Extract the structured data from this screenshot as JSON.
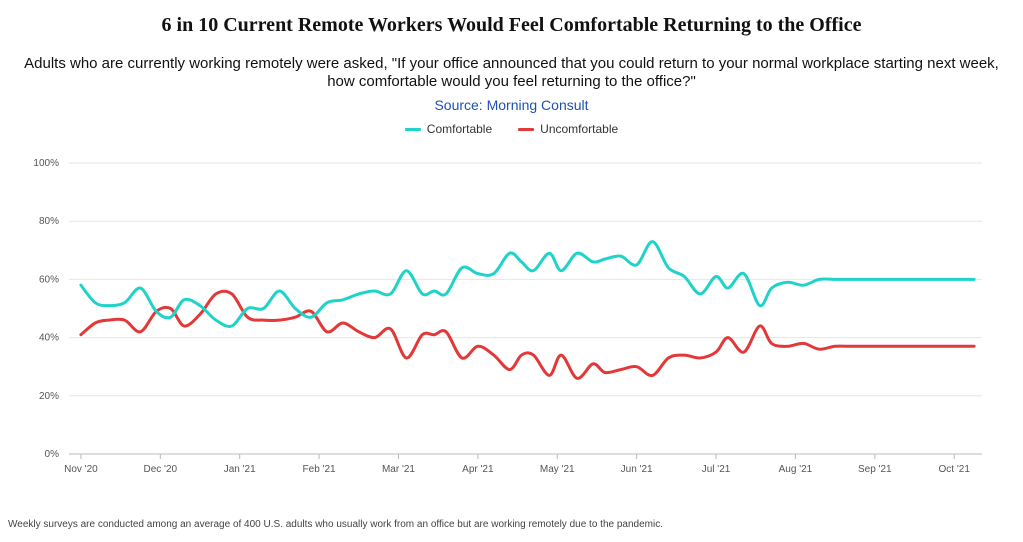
{
  "chart_data": {
    "type": "line",
    "title": "6 in 10 Current Remote Workers Would Feel Comfortable Returning to the Office",
    "subtitle": "Adults who are currently working remotely were asked, \"If your office announced that you could return to your normal workplace starting next week, how comfortable would you feel returning to the office?\"",
    "source": "Source: Morning Consult",
    "footnote": "Weekly surveys are conducted among an average of 400 U.S. adults who usually work from an office but are working remotely due to the pandemic.",
    "ylim": [
      0,
      100
    ],
    "y_ticks": [
      0,
      20,
      40,
      60,
      80,
      100
    ],
    "y_tick_labels": [
      "0%",
      "20%",
      "40%",
      "60%",
      "80%",
      "100%"
    ],
    "x_tick_labels": [
      "Nov '20",
      "Dec '20",
      "Jan '21",
      "Feb '21",
      "Mar '21",
      "Apr '21",
      "May '21",
      "Jun '21",
      "Jul '21",
      "Aug '21",
      "Sep '21",
      "Oct '21"
    ],
    "x_range_months": [
      -0.15,
      11.35
    ],
    "x": [
      0,
      0.18,
      0.35,
      0.55,
      0.75,
      0.95,
      1.13,
      1.3,
      1.5,
      1.7,
      1.9,
      2.1,
      2.3,
      2.5,
      2.7,
      2.9,
      3.1,
      3.3,
      3.5,
      3.7,
      3.9,
      4.1,
      4.3,
      4.45,
      4.6,
      4.8,
      5.0,
      5.2,
      5.4,
      5.55,
      5.7,
      5.9,
      6.05,
      6.25,
      6.45,
      6.6,
      6.8,
      7.0,
      7.2,
      7.4,
      7.6,
      7.8,
      8.0,
      8.15,
      8.35,
      8.55,
      8.7,
      8.9,
      9.1,
      9.3,
      9.5,
      9.7,
      9.9,
      10.05,
      10.25,
      10.45,
      10.65,
      10.85,
      11.05,
      11.25
    ],
    "series": [
      {
        "name": "Comfortable",
        "color": "#1fd3c9",
        "values": [
          58,
          52,
          51,
          52,
          57,
          49,
          47,
          53,
          51,
          46,
          44,
          50,
          50,
          56,
          50,
          47,
          52,
          53,
          55,
          56,
          55,
          63,
          55,
          56,
          55,
          64,
          62,
          62,
          69,
          66,
          63,
          69,
          63,
          69,
          66,
          67,
          68,
          65,
          73,
          64,
          61,
          55,
          61,
          57,
          62,
          51,
          57,
          59,
          58,
          60,
          60,
          60,
          60,
          60,
          60,
          60,
          60,
          60,
          60,
          60
        ]
      },
      {
        "name": "Uncomfortable",
        "color": "#e23838",
        "values": [
          41,
          45,
          46,
          46,
          42,
          49,
          50,
          44,
          48,
          55,
          55,
          47,
          46,
          46,
          47,
          49,
          42,
          45,
          42,
          40,
          43,
          33,
          41,
          41,
          42,
          33,
          37,
          34,
          29,
          34,
          34,
          27,
          34,
          26,
          31,
          28,
          29,
          30,
          27,
          33,
          34,
          33,
          35,
          40,
          35,
          44,
          38,
          37,
          38,
          36,
          37,
          37,
          37,
          37,
          37,
          37,
          37,
          37,
          37,
          37
        ]
      }
    ]
  }
}
